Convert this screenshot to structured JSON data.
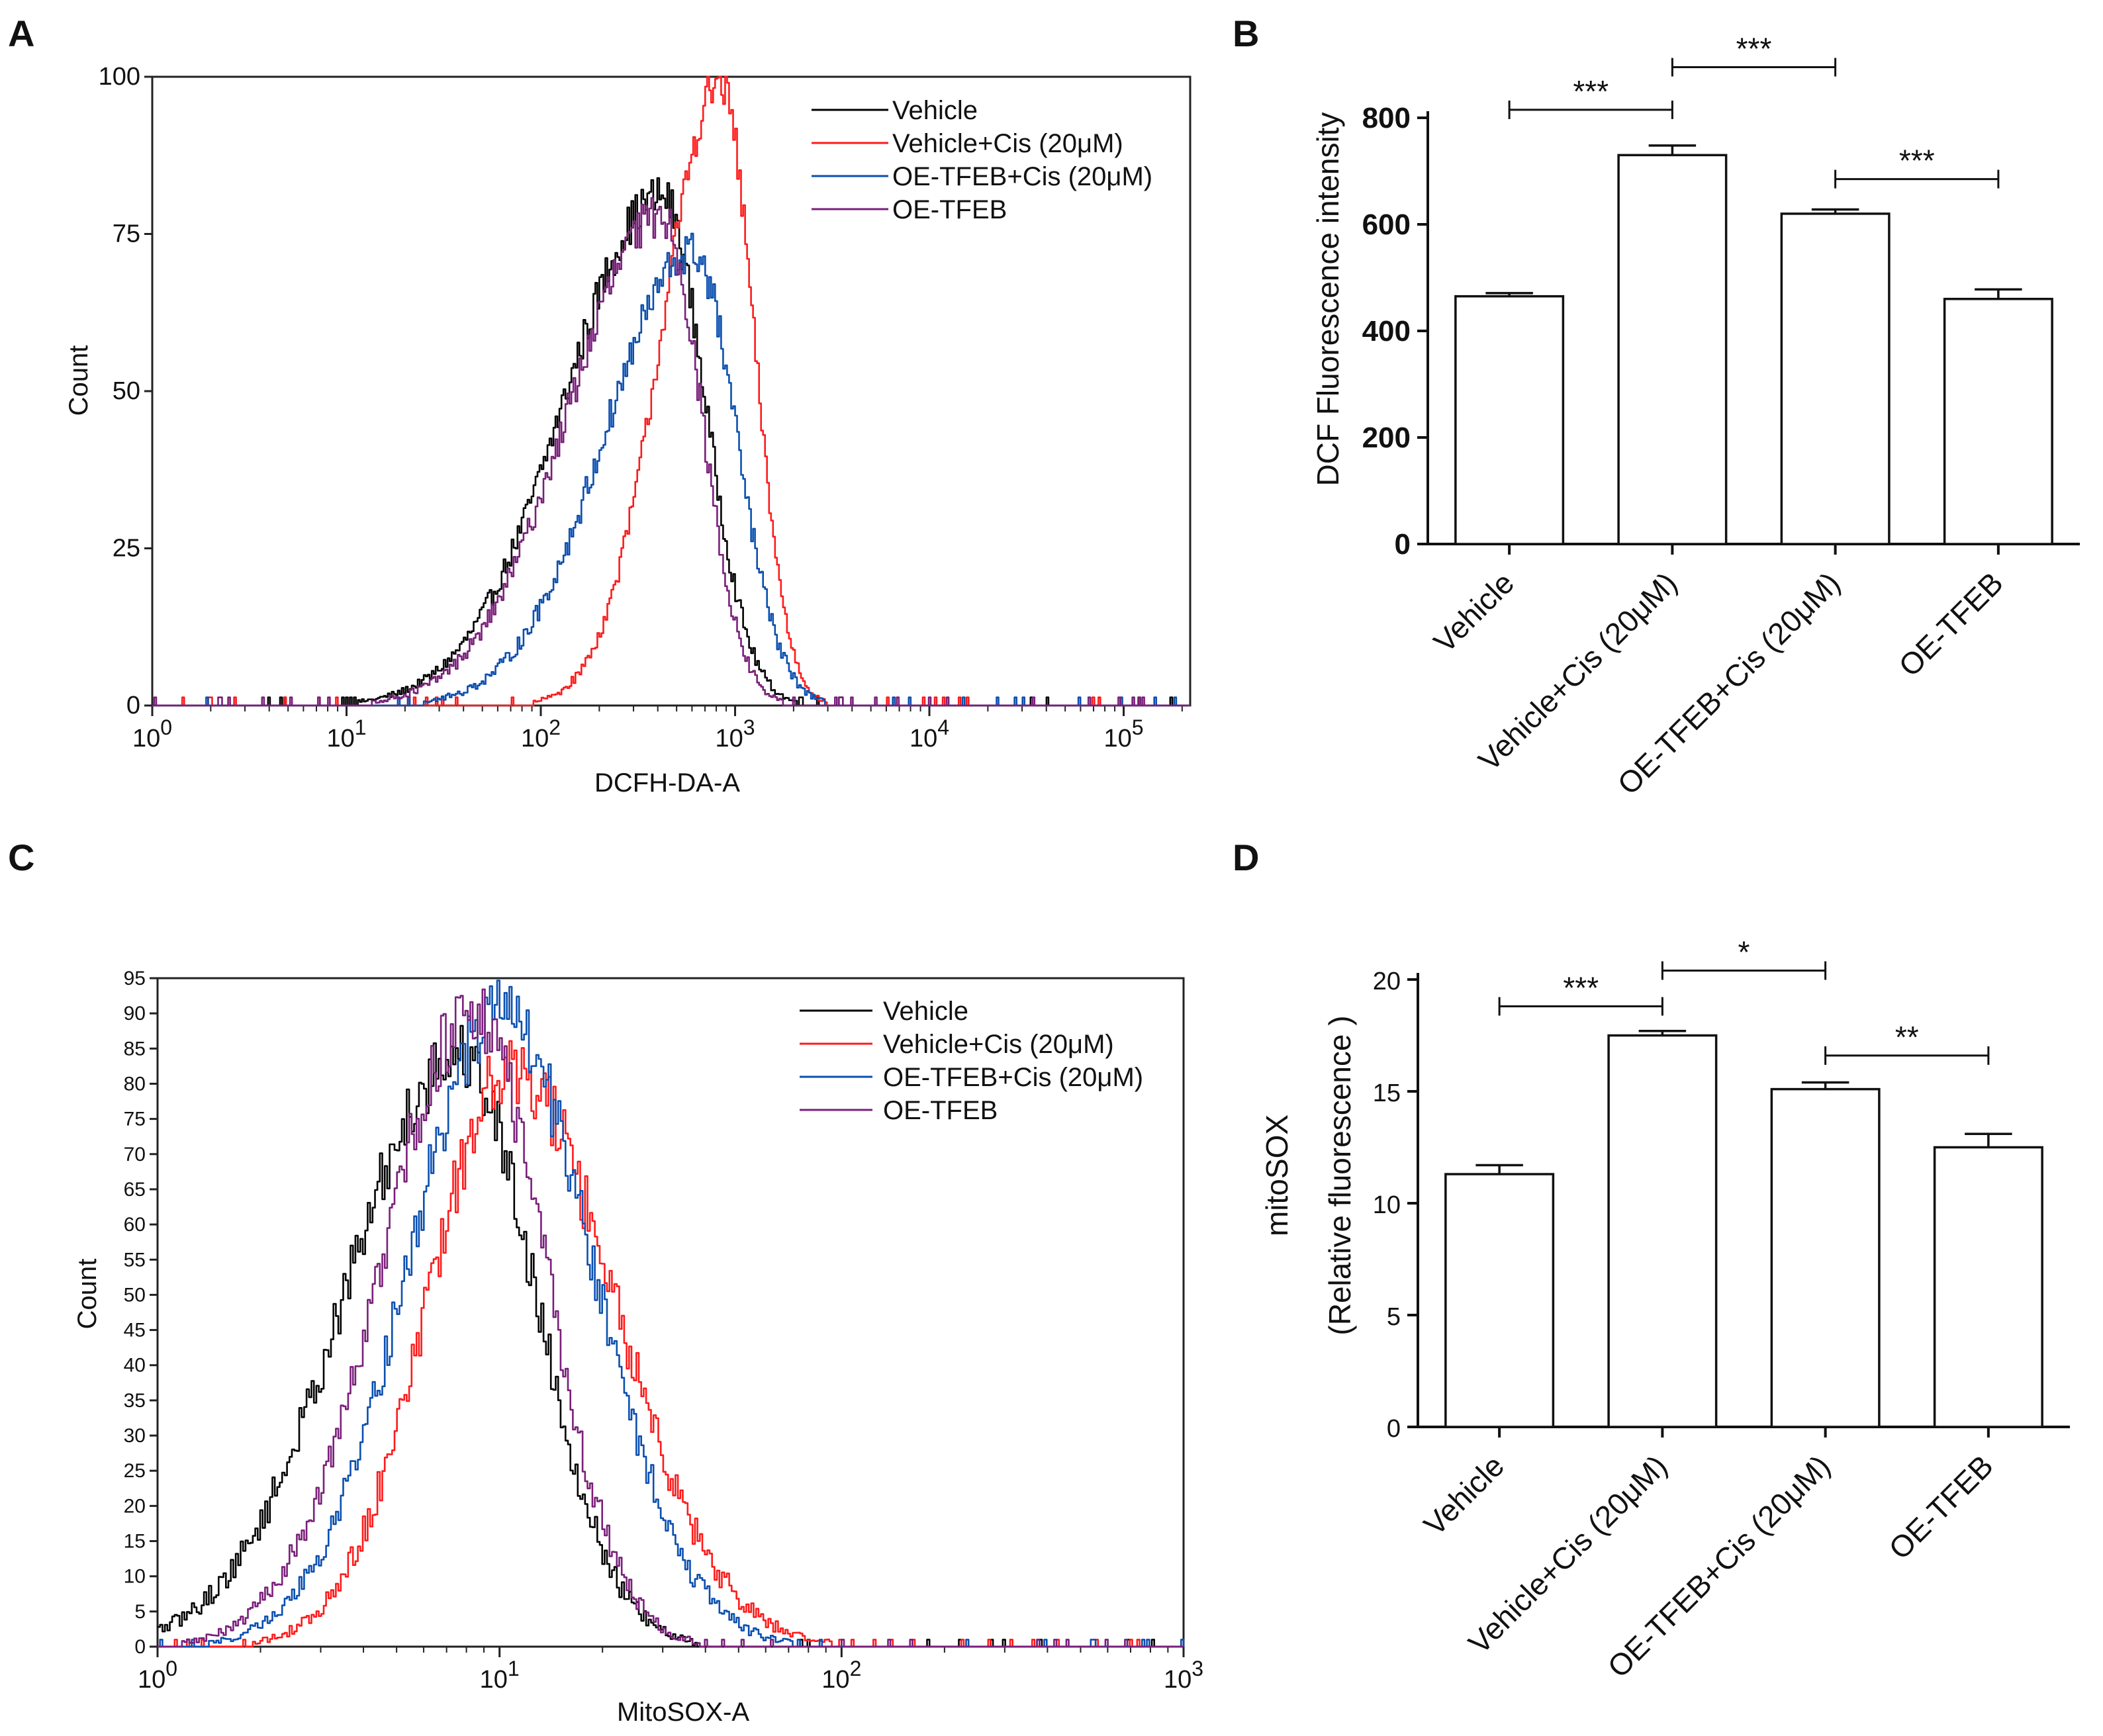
{
  "panels": {
    "A": {
      "letter": "A"
    },
    "B": {
      "letter": "B"
    },
    "C": {
      "letter": "C"
    },
    "D": {
      "letter": "D"
    }
  },
  "chart_data": [
    {
      "id": "A",
      "type": "line",
      "title": "",
      "xlabel": "DCFH-DA-A",
      "ylabel": "Count",
      "x_scale": "log",
      "xlim": [
        1,
        220000.0
      ],
      "ylim": [
        0,
        100
      ],
      "x_ticks": [
        {
          "value": 1,
          "base": "10",
          "exp": "0"
        },
        {
          "value": 10,
          "base": "10",
          "exp": "1"
        },
        {
          "value": 100,
          "base": "10",
          "exp": "2"
        },
        {
          "value": 1000,
          "base": "10",
          "exp": "3"
        },
        {
          "value": 10000,
          "base": "10",
          "exp": "4"
        },
        {
          "value": 100000,
          "base": "10",
          "exp": "5"
        }
      ],
      "y_ticks": [
        "0",
        "25",
        "50",
        "75",
        "100"
      ],
      "legend": [
        {
          "label": "Vehicle",
          "color": "#000000"
        },
        {
          "label": "Vehicle+Cis (20μM)",
          "color": "#ff1a1a"
        },
        {
          "label": "OE-TFEB+Cis (20μM)",
          "color": "#0a4fb0"
        },
        {
          "label": "OE-TFEB",
          "color": "#7a1f7a"
        }
      ],
      "series": [
        {
          "name": "Vehicle",
          "color": "#000000",
          "peak_log10x": 2.62,
          "peak": 81,
          "sigma_left": 0.5,
          "sigma_right": 0.22,
          "noise": 3.5
        },
        {
          "name": "Vehicle+Cis (20μM)",
          "color": "#ff1a1a",
          "peak_log10x": 2.92,
          "peak": 99,
          "sigma_left": 0.3,
          "sigma_right": 0.17,
          "noise": 3.5
        },
        {
          "name": "OE-TFEB+Cis (20μM)",
          "color": "#0a4fb0",
          "peak_log10x": 2.78,
          "peak": 72,
          "sigma_left": 0.45,
          "sigma_right": 0.22,
          "noise": 3.5
        },
        {
          "name": "OE-TFEB",
          "color": "#7a1f7a",
          "peak_log10x": 2.62,
          "peak": 78,
          "sigma_left": 0.48,
          "sigma_right": 0.2,
          "noise": 3.5
        }
      ]
    },
    {
      "id": "B",
      "type": "bar",
      "title": "",
      "xlabel": "",
      "ylabel": "DCF Fluorescence intensity",
      "ylim": [
        0,
        800
      ],
      "y_ticks": [
        "0",
        "200",
        "400",
        "600",
        "800"
      ],
      "categories": [
        "Vehicle",
        "Vehicle+Cis (20μM)",
        "OE-TFEB+Cis (20μM)",
        "OE-TFEB"
      ],
      "values": [
        465,
        730,
        620,
        460
      ],
      "errors": [
        6,
        18,
        8,
        18
      ],
      "significance": [
        {
          "from": 0,
          "to": 1,
          "label": "***",
          "y": 815
        },
        {
          "from": 1,
          "to": 2,
          "label": "***",
          "y": 895
        },
        {
          "from": 2,
          "to": 3,
          "label": "***",
          "y": 685
        }
      ]
    },
    {
      "id": "C",
      "type": "line",
      "title": "",
      "xlabel": "MitoSOX-A",
      "ylabel": "Count",
      "x_scale": "log",
      "xlim": [
        1,
        1000
      ],
      "ylim": [
        0,
        95
      ],
      "x_ticks": [
        {
          "value": 1,
          "base": "10",
          "exp": "0"
        },
        {
          "value": 10,
          "base": "10",
          "exp": "1"
        },
        {
          "value": 100,
          "base": "10",
          "exp": "2"
        },
        {
          "value": 1000,
          "base": "10",
          "exp": "3"
        }
      ],
      "y_ticks": [
        "0",
        "5",
        "10",
        "15",
        "20",
        "25",
        "30",
        "35",
        "40",
        "45",
        "50",
        "55",
        "60",
        "65",
        "70",
        "75",
        "80",
        "85",
        "90",
        "95"
      ],
      "legend": [
        {
          "label": "Vehicle",
          "color": "#000000"
        },
        {
          "label": "Vehicle+Cis (20μM)",
          "color": "#ff1a1a"
        },
        {
          "label": "OE-TFEB+Cis (20μM)",
          "color": "#0a4fb0"
        },
        {
          "label": "OE-TFEB",
          "color": "#7a1f7a"
        }
      ],
      "series": [
        {
          "name": "Vehicle",
          "color": "#000000",
          "peak_log10x": 0.88,
          "peak": 84,
          "sigma_left": 0.33,
          "sigma_right": 0.22,
          "noise": 5
        },
        {
          "name": "Vehicle+Cis (20μM)",
          "color": "#ff1a1a",
          "peak_log10x": 1.03,
          "peak": 82,
          "sigma_left": 0.24,
          "sigma_right": 0.3,
          "noise": 5
        },
        {
          "name": "OE-TFEB+Cis (20μM)",
          "color": "#0a4fb0",
          "peak_log10x": 1.0,
          "peak": 90,
          "sigma_left": 0.27,
          "sigma_right": 0.27,
          "noise": 5
        },
        {
          "name": "OE-TFEB",
          "color": "#7a1f7a",
          "peak_log10x": 0.92,
          "peak": 90,
          "sigma_left": 0.27,
          "sigma_right": 0.21,
          "noise": 5
        }
      ]
    },
    {
      "id": "D",
      "type": "bar",
      "title": "",
      "xlabel": "",
      "ylabel": "mitoSOX",
      "ylabel2": "(Relative fluorescence )",
      "ylim": [
        0,
        20
      ],
      "y_ticks": [
        "0",
        "5",
        "10",
        "15",
        "20"
      ],
      "categories": [
        "Vehicle",
        "Vehicle+Cis (20μM)",
        "OE-TFEB+Cis (20μM)",
        "OE-TFEB"
      ],
      "values": [
        11.3,
        17.5,
        15.1,
        12.5
      ],
      "errors": [
        0.4,
        0.2,
        0.3,
        0.6
      ],
      "significance": [
        {
          "from": 0,
          "to": 1,
          "label": "***",
          "y": 18.8
        },
        {
          "from": 1,
          "to": 2,
          "label": "*",
          "y": 20.4
        },
        {
          "from": 2,
          "to": 3,
          "label": "**",
          "y": 16.6
        }
      ]
    }
  ]
}
